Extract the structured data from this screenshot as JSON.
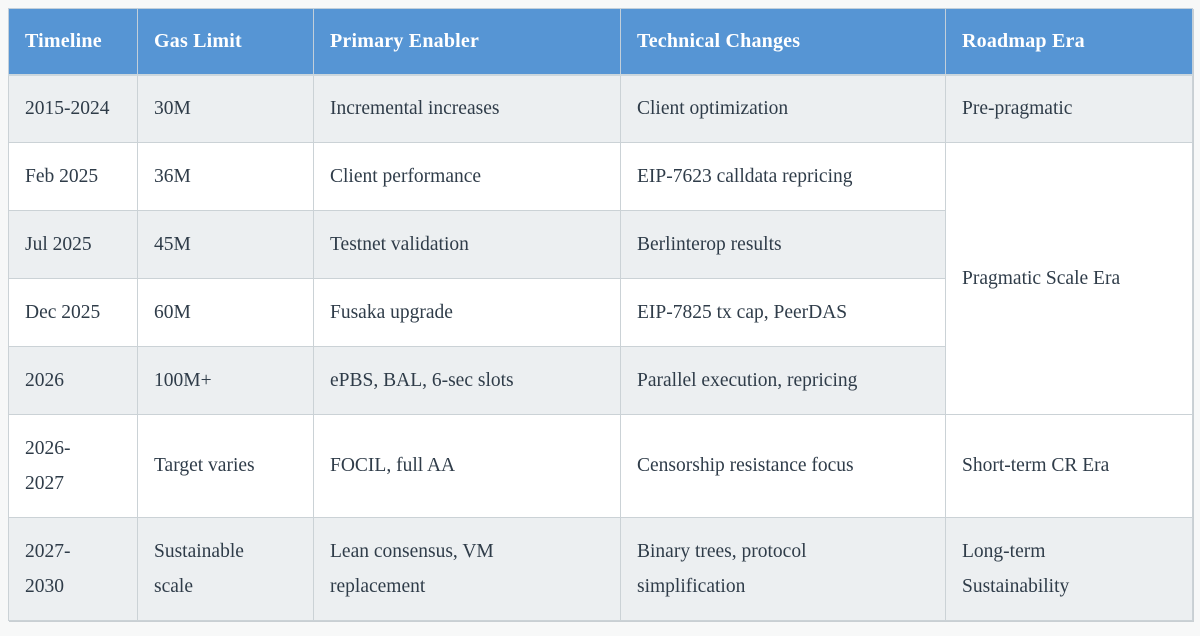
{
  "colors": {
    "header_bg": "#5695d4",
    "header_text": "#ffffff",
    "row_alt_bg": "#eceff1",
    "row_bg": "#ffffff",
    "border": "#cbd2d6",
    "body_text": "#2f3c49",
    "page_bg": "#f7f8f8"
  },
  "table": {
    "columns": {
      "timeline": "Timeline",
      "gas_limit": "Gas Limit",
      "primary_enabler": "Primary Enabler",
      "technical_changes": "Technical Changes",
      "roadmap_era": "Roadmap Era"
    },
    "rows": [
      {
        "timeline": "2015-2024",
        "gas_limit": "30M",
        "primary_enabler": "Incremental increases",
        "technical_changes": "Client optimization",
        "roadmap_era": "Pre-pragmatic"
      },
      {
        "timeline": "Feb 2025",
        "gas_limit": "36M",
        "primary_enabler": "Client performance",
        "technical_changes": "EIP-7623 calldata repricing",
        "roadmap_era": "Pragmatic Scale Era"
      },
      {
        "timeline": "Jul 2025",
        "gas_limit": "45M",
        "primary_enabler": "Testnet validation",
        "technical_changes": "Berlinterop results"
      },
      {
        "timeline": "Dec 2025",
        "gas_limit": "60M",
        "primary_enabler": "Fusaka upgrade",
        "technical_changes": "EIP-7825 tx cap, PeerDAS"
      },
      {
        "timeline": "2026",
        "gas_limit": "100M+",
        "primary_enabler": "ePBS, BAL, 6-sec slots",
        "technical_changes": "Parallel execution, repricing"
      },
      {
        "timeline": "2026-\n2027",
        "gas_limit": "Target varies",
        "primary_enabler": "FOCIL, full AA",
        "technical_changes": "Censorship resistance focus",
        "roadmap_era": "Short-term CR Era"
      },
      {
        "timeline": "2027-\n2030",
        "gas_limit": "Sustainable\nscale",
        "primary_enabler": "Lean consensus, VM\nreplacement",
        "technical_changes": "Binary trees, protocol\nsimplification",
        "roadmap_era": "Long-term\nSustainability"
      }
    ]
  }
}
